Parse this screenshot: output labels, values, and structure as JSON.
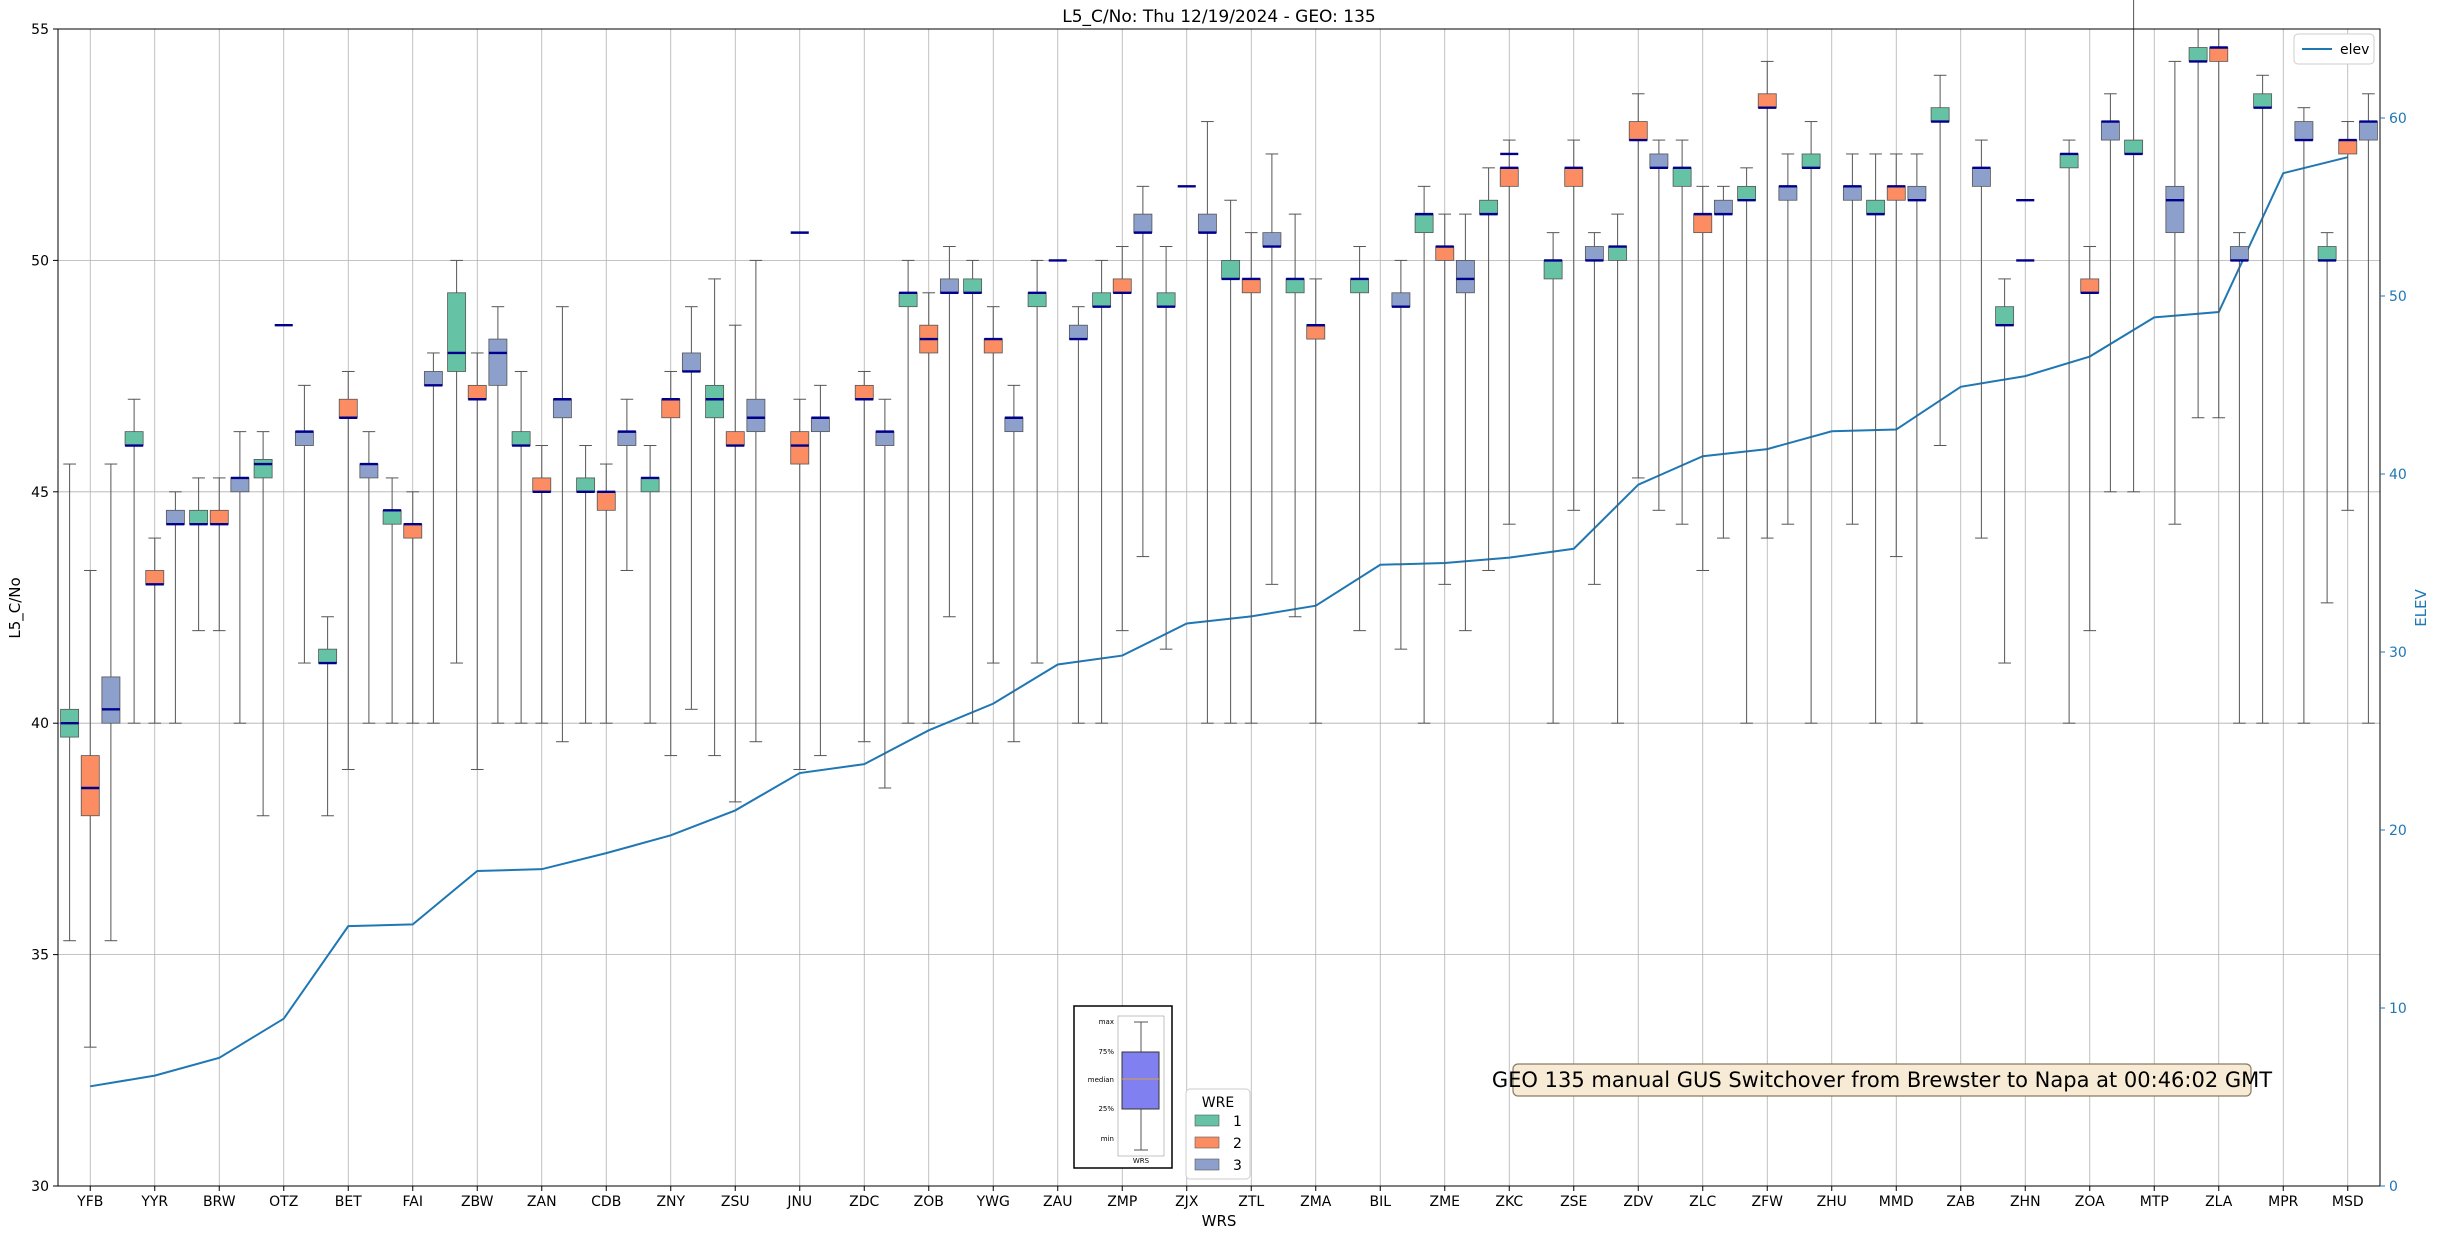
{
  "chart_data": {
    "type": "box",
    "title": "L5_C/No: Thu 12/19/2024 - GEO: 135",
    "xlabel": "WRS",
    "ylabel": "L5_C/No",
    "ylabel_right": "ELEV",
    "ylim": [
      30,
      55
    ],
    "ylim_right": [
      0,
      65
    ],
    "yticks": [
      30,
      35,
      40,
      45,
      50,
      55
    ],
    "yticks_right": [
      0,
      10,
      20,
      30,
      40,
      50,
      60
    ],
    "grid": true,
    "colors": {
      "1": "#66c2a5",
      "2": "#fc8d62",
      "3": "#8da0cb",
      "elev": "#1f77b4",
      "median": "#00008b"
    },
    "categories": [
      "YFB",
      "YYR",
      "BRW",
      "OTZ",
      "BET",
      "FAI",
      "ZBW",
      "ZAN",
      "CDB",
      "ZNY",
      "ZSU",
      "JNU",
      "ZDC",
      "ZOB",
      "YWG",
      "ZAU",
      "ZMP",
      "ZJX",
      "ZTL",
      "ZMA",
      "BIL",
      "ZME",
      "ZKC",
      "ZSE",
      "ZDV",
      "ZLC",
      "ZFW",
      "ZHU",
      "MMD",
      "ZAB",
      "ZHN",
      "ZOA",
      "MTP",
      "ZLA",
      "MPR",
      "MSD"
    ],
    "elev": [
      5.6,
      6.2,
      7.2,
      9.4,
      14.6,
      14.7,
      17.7,
      17.8,
      18.7,
      19.7,
      21.1,
      23.2,
      23.7,
      25.6,
      27.1,
      29.3,
      29.8,
      31.6,
      32.0,
      32.6,
      34.9,
      35.0,
      35.3,
      35.8,
      39.4,
      41.0,
      41.4,
      42.4,
      42.5,
      44.9,
      45.5,
      46.6,
      48.8,
      49.1,
      56.9,
      57.8
    ],
    "series": [
      {
        "name": "1",
        "label": "1",
        "boxes": [
          {
            "i": 0,
            "min": 35.3,
            "q1": 39.7,
            "med": 40.0,
            "q3": 40.3,
            "max": 45.6
          },
          {
            "i": 1,
            "min": 40.0,
            "q1": 46.0,
            "med": 46.0,
            "q3": 46.3,
            "max": 47.0
          },
          {
            "i": 2,
            "min": 42.0,
            "q1": 44.3,
            "med": 44.3,
            "q3": 44.6,
            "max": 45.3
          },
          {
            "i": 3,
            "min": 38.0,
            "q1": 45.3,
            "med": 45.6,
            "q3": 45.7,
            "max": 46.3
          },
          {
            "i": 4,
            "min": 38.0,
            "q1": 41.3,
            "med": 41.3,
            "q3": 41.6,
            "max": 42.3
          },
          {
            "i": 5,
            "min": 40.0,
            "q1": 44.3,
            "med": 44.6,
            "q3": 44.6,
            "max": 45.3
          },
          {
            "i": 6,
            "min": 41.3,
            "q1": 47.6,
            "med": 48.0,
            "q3": 49.3,
            "max": 50.0
          },
          {
            "i": 7,
            "min": 40.0,
            "q1": 46.0,
            "med": 46.0,
            "q3": 46.3,
            "max": 47.6
          },
          {
            "i": 8,
            "min": 40.0,
            "q1": 45.0,
            "med": 45.0,
            "q3": 45.3,
            "max": 46.0
          },
          {
            "i": 9,
            "min": 40.0,
            "q1": 45.0,
            "med": 45.3,
            "q3": 45.3,
            "max": 46.0
          },
          {
            "i": 10,
            "min": 39.3,
            "q1": 46.6,
            "med": 47.0,
            "q3": 47.3,
            "max": 49.6
          },
          {
            "i": 13,
            "min": 40.0,
            "q1": 49.0,
            "med": 49.3,
            "q3": 49.3,
            "max": 50.0
          },
          {
            "i": 14,
            "min": 40.0,
            "q1": 49.3,
            "med": 49.3,
            "q3": 49.6,
            "max": 50.0
          },
          {
            "i": 15,
            "min": 41.3,
            "q1": 49.0,
            "med": 49.3,
            "q3": 49.3,
            "max": 50.0
          },
          {
            "i": 16,
            "min": 40.0,
            "q1": 49.0,
            "med": 49.0,
            "q3": 49.3,
            "max": 50.0
          },
          {
            "i": 17,
            "min": 41.6,
            "q1": 49.0,
            "med": 49.0,
            "q3": 49.3,
            "max": 50.3
          },
          {
            "i": 18,
            "min": 40.0,
            "q1": 49.6,
            "med": 49.6,
            "q3": 50.0,
            "max": 51.3
          },
          {
            "i": 19,
            "min": 42.3,
            "q1": 49.3,
            "med": 49.6,
            "q3": 49.6,
            "max": 51.0
          },
          {
            "i": 20,
            "min": 42.0,
            "q1": 49.3,
            "med": 49.6,
            "q3": 49.6,
            "max": 50.3
          },
          {
            "i": 21,
            "min": 40.0,
            "q1": 50.6,
            "med": 51.0,
            "q3": 51.0,
            "max": 51.6
          },
          {
            "i": 22,
            "min": 43.3,
            "q1": 51.0,
            "med": 51.0,
            "q3": 51.3,
            "max": 52.0
          },
          {
            "i": 23,
            "min": 40.0,
            "q1": 49.6,
            "med": 50.0,
            "q3": 50.0,
            "max": 50.6
          },
          {
            "i": 24,
            "min": 40.0,
            "q1": 50.0,
            "med": 50.3,
            "q3": 50.3,
            "max": 51.0
          },
          {
            "i": 25,
            "min": 44.3,
            "q1": 51.6,
            "med": 52.0,
            "q3": 52.0,
            "max": 52.6
          },
          {
            "i": 26,
            "min": 40.0,
            "q1": 51.3,
            "med": 51.3,
            "q3": 51.6,
            "max": 52.0
          },
          {
            "i": 27,
            "min": 40.0,
            "q1": 52.0,
            "med": 52.0,
            "q3": 52.3,
            "max": 53.0
          },
          {
            "i": 28,
            "min": 40.0,
            "q1": 51.0,
            "med": 51.0,
            "q3": 51.3,
            "max": 52.3
          },
          {
            "i": 29,
            "min": 46.0,
            "q1": 53.0,
            "med": 53.0,
            "q3": 53.3,
            "max": 54.0
          },
          {
            "i": 30,
            "min": 41.3,
            "q1": 48.6,
            "med": 48.6,
            "q3": 49.0,
            "max": 49.6
          },
          {
            "i": 31,
            "min": 40.0,
            "q1": 52.0,
            "med": 52.3,
            "q3": 52.3,
            "max": 52.6
          },
          {
            "i": 32,
            "min": 45.0,
            "q1": 52.3,
            "med": 52.3,
            "q3": 52.6,
            "max": 56.0
          },
          {
            "i": 33,
            "min": 46.6,
            "q1": 54.3,
            "med": 54.3,
            "q3": 54.6,
            "max": 55.0
          },
          {
            "i": 34,
            "min": 40.0,
            "q1": 53.3,
            "med": 53.3,
            "q3": 53.6,
            "max": 54.0
          },
          {
            "i": 35,
            "min": 42.6,
            "q1": 50.0,
            "med": 50.0,
            "q3": 50.3,
            "max": 50.6
          }
        ]
      },
      {
        "name": "2",
        "label": "2",
        "boxes": [
          {
            "i": 0,
            "min": 33.0,
            "q1": 38.0,
            "med": 38.6,
            "q3": 39.3,
            "max": 43.3
          },
          {
            "i": 1,
            "min": 40.0,
            "q1": 43.0,
            "med": 43.0,
            "q3": 43.3,
            "max": 44.0
          },
          {
            "i": 2,
            "min": 42.0,
            "q1": 44.3,
            "med": 44.3,
            "q3": 44.6,
            "max": 45.3
          },
          {
            "i": 4,
            "min": 39.0,
            "q1": 46.6,
            "med": 46.6,
            "q3": 47.0,
            "max": 47.6
          },
          {
            "i": 5,
            "min": 40.0,
            "q1": 44.0,
            "med": 44.3,
            "q3": 44.3,
            "max": 45.0
          },
          {
            "i": 6,
            "min": 39.0,
            "q1": 47.0,
            "med": 47.0,
            "q3": 47.3,
            "max": 48.0
          },
          {
            "i": 7,
            "min": 40.0,
            "q1": 45.0,
            "med": 45.0,
            "q3": 45.3,
            "max": 46.0
          },
          {
            "i": 8,
            "min": 40.0,
            "q1": 44.6,
            "med": 45.0,
            "q3": 45.0,
            "max": 45.6
          },
          {
            "i": 9,
            "min": 39.3,
            "q1": 46.6,
            "med": 47.0,
            "q3": 47.0,
            "max": 47.6
          },
          {
            "i": 10,
            "min": 38.3,
            "q1": 46.0,
            "med": 46.0,
            "q3": 46.3,
            "max": 48.6
          },
          {
            "i": 11,
            "min": 39.0,
            "q1": 45.6,
            "med": 46.0,
            "q3": 46.3,
            "max": 47.0
          },
          {
            "i": 12,
            "min": 39.6,
            "q1": 47.0,
            "med": 47.0,
            "q3": 47.3,
            "max": 47.6
          },
          {
            "i": 13,
            "min": 40.0,
            "q1": 48.0,
            "med": 48.3,
            "q3": 48.6,
            "max": 49.3
          },
          {
            "i": 14,
            "min": 41.3,
            "q1": 48.0,
            "med": 48.3,
            "q3": 48.3,
            "max": 49.0
          },
          {
            "i": 16,
            "min": 42.0,
            "q1": 49.3,
            "med": 49.3,
            "q3": 49.6,
            "max": 50.3
          },
          {
            "i": 18,
            "min": 40.0,
            "q1": 49.3,
            "med": 49.6,
            "q3": 49.6,
            "max": 50.6
          },
          {
            "i": 19,
            "min": 40.0,
            "q1": 48.3,
            "med": 48.6,
            "q3": 48.6,
            "max": 49.6
          },
          {
            "i": 21,
            "min": 43.0,
            "q1": 50.0,
            "med": 50.3,
            "q3": 50.3,
            "max": 51.0
          },
          {
            "i": 22,
            "min": 44.3,
            "q1": 51.6,
            "med": 52.0,
            "q3": 52.0,
            "max": 52.6
          },
          {
            "i": 23,
            "min": 44.6,
            "q1": 51.6,
            "med": 52.0,
            "q3": 52.0,
            "max": 52.6
          },
          {
            "i": 24,
            "min": 45.3,
            "q1": 52.6,
            "med": 52.6,
            "q3": 53.0,
            "max": 53.6
          },
          {
            "i": 25,
            "min": 43.3,
            "q1": 50.6,
            "med": 51.0,
            "q3": 51.0,
            "max": 51.6
          },
          {
            "i": 26,
            "min": 44.0,
            "q1": 53.3,
            "med": 53.3,
            "q3": 53.6,
            "max": 54.3
          },
          {
            "i": 28,
            "min": 43.6,
            "q1": 51.3,
            "med": 51.6,
            "q3": 51.6,
            "max": 52.3
          },
          {
            "i": 31,
            "min": 42.0,
            "q1": 49.3,
            "med": 49.3,
            "q3": 49.6,
            "max": 50.3
          },
          {
            "i": 33,
            "min": 46.6,
            "q1": 54.3,
            "med": 54.6,
            "q3": 54.6,
            "max": 55.0
          },
          {
            "i": 35,
            "min": 44.6,
            "q1": 52.3,
            "med": 52.6,
            "q3": 52.6,
            "max": 53.0
          }
        ]
      },
      {
        "name": "3",
        "label": "3",
        "boxes": [
          {
            "i": 0,
            "min": 35.3,
            "q1": 40.0,
            "med": 40.3,
            "q3": 41.0,
            "max": 45.6
          },
          {
            "i": 1,
            "min": 40.0,
            "q1": 44.3,
            "med": 44.3,
            "q3": 44.6,
            "max": 45.0
          },
          {
            "i": 2,
            "min": 40.0,
            "q1": 45.0,
            "med": 45.3,
            "q3": 45.3,
            "max": 46.3
          },
          {
            "i": 3,
            "min": 41.3,
            "q1": 46.0,
            "med": 46.3,
            "q3": 46.3,
            "max": 47.3
          },
          {
            "i": 4,
            "min": 40.0,
            "q1": 45.3,
            "med": 45.6,
            "q3": 45.6,
            "max": 46.3
          },
          {
            "i": 5,
            "min": 40.0,
            "q1": 47.3,
            "med": 47.3,
            "q3": 47.6,
            "max": 48.0
          },
          {
            "i": 6,
            "min": 40.0,
            "q1": 47.3,
            "med": 48.0,
            "q3": 48.3,
            "max": 49.0
          },
          {
            "i": 7,
            "min": 39.6,
            "q1": 46.6,
            "med": 47.0,
            "q3": 47.0,
            "max": 49.0
          },
          {
            "i": 8,
            "min": 43.3,
            "q1": 46.0,
            "med": 46.3,
            "q3": 46.3,
            "max": 47.0
          },
          {
            "i": 9,
            "min": 40.3,
            "q1": 47.6,
            "med": 47.6,
            "q3": 48.0,
            "max": 49.0
          },
          {
            "i": 10,
            "min": 39.6,
            "q1": 46.3,
            "med": 46.6,
            "q3": 47.0,
            "max": 50.0
          },
          {
            "i": 11,
            "min": 39.3,
            "q1": 46.3,
            "med": 46.6,
            "q3": 46.6,
            "max": 47.3
          },
          {
            "i": 12,
            "min": 38.6,
            "q1": 46.0,
            "med": 46.3,
            "q3": 46.3,
            "max": 47.0
          },
          {
            "i": 13,
            "min": 42.3,
            "q1": 49.3,
            "med": 49.3,
            "q3": 49.6,
            "max": 50.3
          },
          {
            "i": 14,
            "min": 39.6,
            "q1": 46.3,
            "med": 46.6,
            "q3": 46.6,
            "max": 47.3
          },
          {
            "i": 15,
            "min": 40.0,
            "q1": 48.3,
            "med": 48.3,
            "q3": 48.6,
            "max": 49.0
          },
          {
            "i": 16,
            "min": 43.6,
            "q1": 50.6,
            "med": 50.6,
            "q3": 51.0,
            "max": 51.6
          },
          {
            "i": 17,
            "min": 40.0,
            "q1": 50.6,
            "med": 50.6,
            "q3": 51.0,
            "max": 53.0
          },
          {
            "i": 18,
            "min": 43.0,
            "q1": 50.3,
            "med": 50.3,
            "q3": 50.6,
            "max": 52.3
          },
          {
            "i": 20,
            "min": 41.6,
            "q1": 49.0,
            "med": 49.0,
            "q3": 49.3,
            "max": 50.0
          },
          {
            "i": 21,
            "min": 42.0,
            "q1": 49.3,
            "med": 49.6,
            "q3": 50.0,
            "max": 51.0
          },
          {
            "i": 23,
            "min": 43.0,
            "q1": 50.0,
            "med": 50.0,
            "q3": 50.3,
            "max": 50.6
          },
          {
            "i": 24,
            "min": 44.6,
            "q1": 52.0,
            "med": 52.0,
            "q3": 52.3,
            "max": 52.6
          },
          {
            "i": 25,
            "min": 44.0,
            "q1": 51.0,
            "med": 51.0,
            "q3": 51.3,
            "max": 51.6
          },
          {
            "i": 26,
            "min": 44.3,
            "q1": 51.3,
            "med": 51.6,
            "q3": 51.6,
            "max": 52.3
          },
          {
            "i": 27,
            "min": 44.3,
            "q1": 51.3,
            "med": 51.6,
            "q3": 51.6,
            "max": 52.3
          },
          {
            "i": 28,
            "min": 40.0,
            "q1": 51.3,
            "med": 51.3,
            "q3": 51.6,
            "max": 52.3
          },
          {
            "i": 29,
            "min": 44.0,
            "q1": 51.6,
            "med": 52.0,
            "q3": 52.0,
            "max": 52.6
          },
          {
            "i": 31,
            "min": 45.0,
            "q1": 52.6,
            "med": 53.0,
            "q3": 53.0,
            "max": 53.6
          },
          {
            "i": 32,
            "min": 44.3,
            "q1": 50.6,
            "med": 51.3,
            "q3": 51.6,
            "max": 54.3
          },
          {
            "i": 33,
            "min": 40.0,
            "q1": 50.0,
            "med": 50.0,
            "q3": 50.3,
            "max": 50.6
          },
          {
            "i": 34,
            "min": 40.0,
            "q1": 52.6,
            "med": 52.6,
            "q3": 53.0,
            "max": 53.3
          },
          {
            "i": 35,
            "min": 40.0,
            "q1": 52.6,
            "med": 53.0,
            "q3": 53.0,
            "max": 53.6
          }
        ]
      }
    ],
    "lone_medians": [
      {
        "i": 3,
        "value": 48.6
      },
      {
        "i": 11,
        "value": 50.6
      },
      {
        "i": 15,
        "value": 50.0
      },
      {
        "i": 17,
        "value": 51.6
      },
      {
        "i": 19,
        "value": 48.6
      },
      {
        "i": 22,
        "value": 52.3
      },
      {
        "i": 30,
        "value": 51.3
      },
      {
        "i": 30,
        "value": 50.0
      }
    ],
    "legend_elev": {
      "label": "elev"
    },
    "legend_wre": {
      "title": "WRE",
      "entries": [
        "1",
        "2",
        "3"
      ]
    },
    "box_key": {
      "labels": [
        "max",
        "75%",
        "median",
        "25%",
        "min"
      ],
      "xlabel": "WRS"
    },
    "annotation": "GEO 135 manual GUS Switchover from Brewster to Napa at 00:46:02 GMT"
  }
}
